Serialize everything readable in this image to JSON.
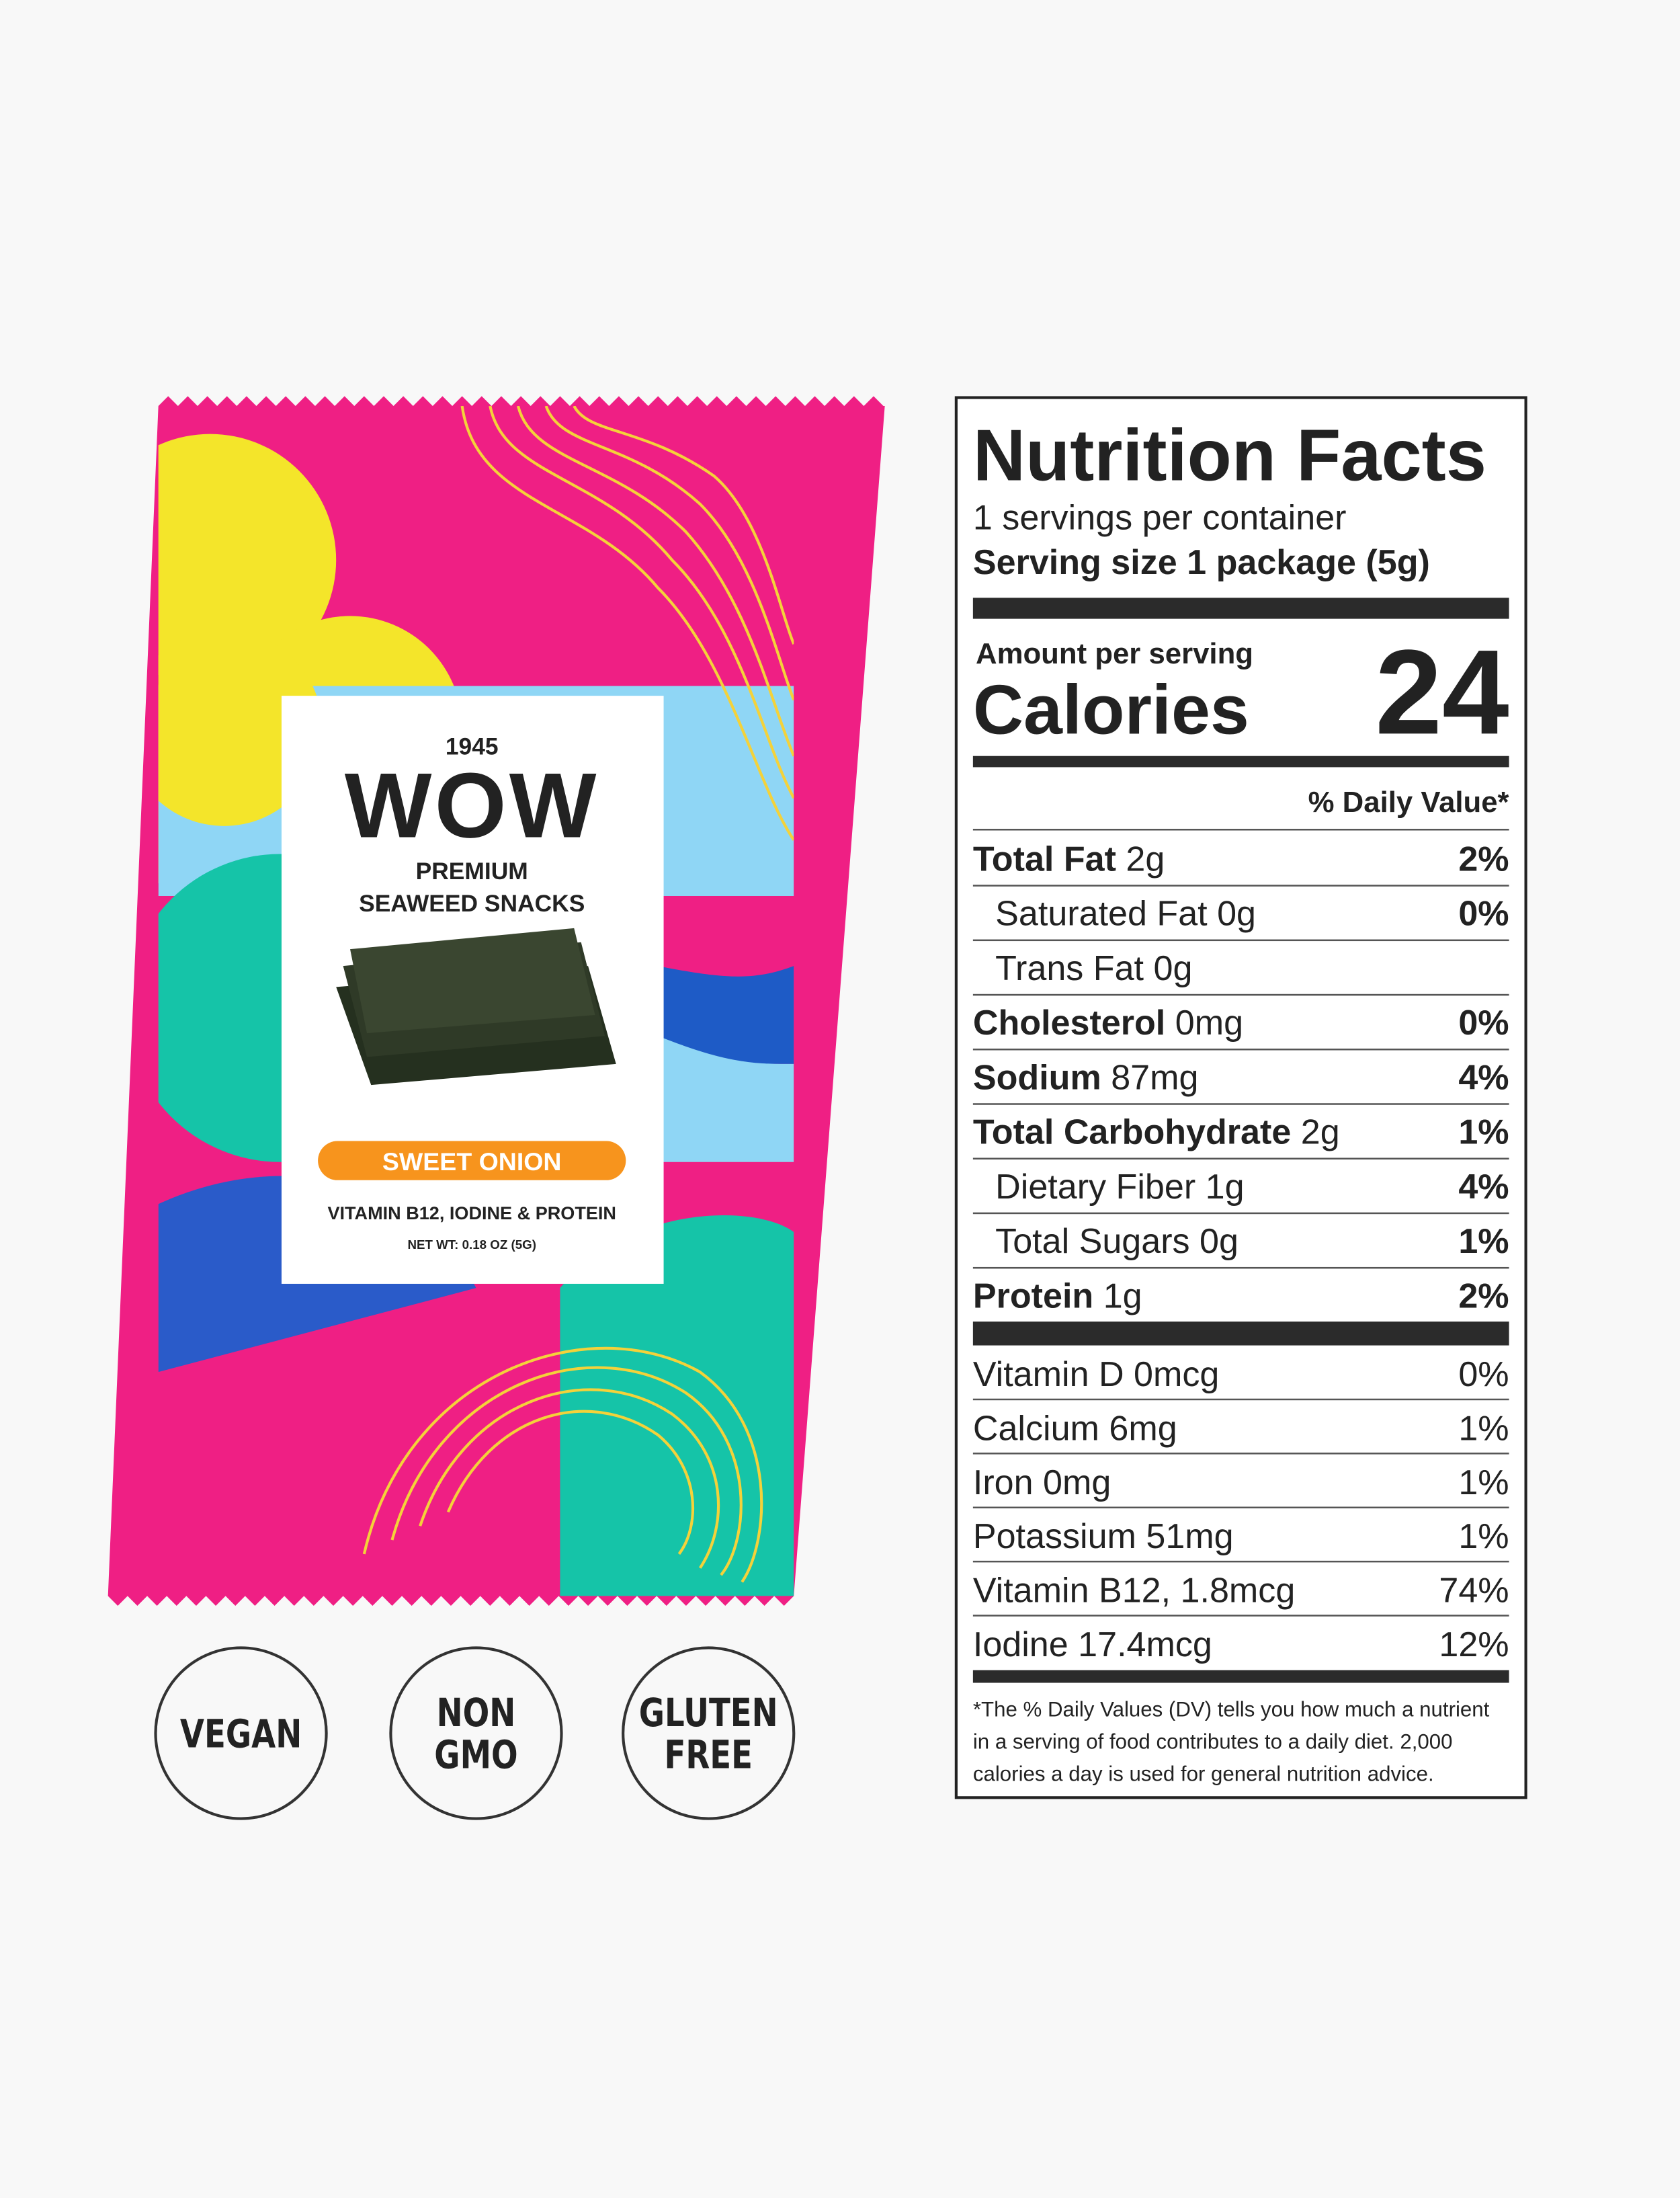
{
  "package": {
    "year": "1945",
    "brand": "WOW",
    "tagline": [
      "PREMIUM",
      "SEAWEED SNACKS"
    ],
    "flavor": "SWEET ONION",
    "benefits": "VITAMIN B12, IODINE & PROTEIN",
    "net_weight": "NET WT: 0.18 OZ (5G)"
  },
  "badges": [
    [
      "VEGAN"
    ],
    [
      "NON",
      "GMO"
    ],
    [
      "GLUTEN",
      "FREE"
    ]
  ],
  "nutrition": {
    "title": "Nutrition Facts",
    "servings": "1 servings per container",
    "serving_size": "Serving size 1 package (5g)",
    "amount_label": "Amount per serving",
    "calories_label": "Calories",
    "calories": 24,
    "dv_header": "% Daily Value*",
    "nutrients": [
      {
        "name": "Total Fat",
        "amount": "2g",
        "dv": "2%",
        "level": 0
      },
      {
        "name": "Saturated Fat",
        "amount": "0g",
        "dv": "0%",
        "level": 1
      },
      {
        "name": "Trans Fat",
        "amount": "0g",
        "level": 1
      },
      {
        "name": "Cholesterol",
        "amount": "0mg",
        "dv": "0%",
        "level": 0
      },
      {
        "name": "Sodium",
        "amount": "87mg",
        "dv": "4%",
        "level": 0
      },
      {
        "name": "Total Carbohydrate",
        "amount": "2g",
        "dv": "1%",
        "level": 0
      },
      {
        "name": "Dietary Fiber",
        "amount": "1g",
        "dv": "4%",
        "level": 1
      },
      {
        "name": "Total Sugars",
        "amount": "0g",
        "dv": "1%",
        "level": 1
      },
      {
        "name": "Protein",
        "amount": "1g",
        "dv": "2%",
        "level": 0
      }
    ],
    "vitamins": [
      {
        "name": "Vitamin D 0mcg",
        "dv": "0%"
      },
      {
        "name": "Calcium 6mg",
        "dv": "1%"
      },
      {
        "name": "Iron 0mg",
        "dv": "1%"
      },
      {
        "name": "Potassium 51mg",
        "dv": "1%"
      },
      {
        "name": "Vitamin B12, 1.8mcg",
        "dv": "74%"
      },
      {
        "name": "Iodine 17.4mcg",
        "dv": "12%"
      }
    ],
    "footnote": [
      "*The % Daily Values (DV) tells you how much a nutrient",
      "in a serving of food contributes to a daily diet. 2,000",
      "calories a day is used for general nutrition advice."
    ]
  }
}
